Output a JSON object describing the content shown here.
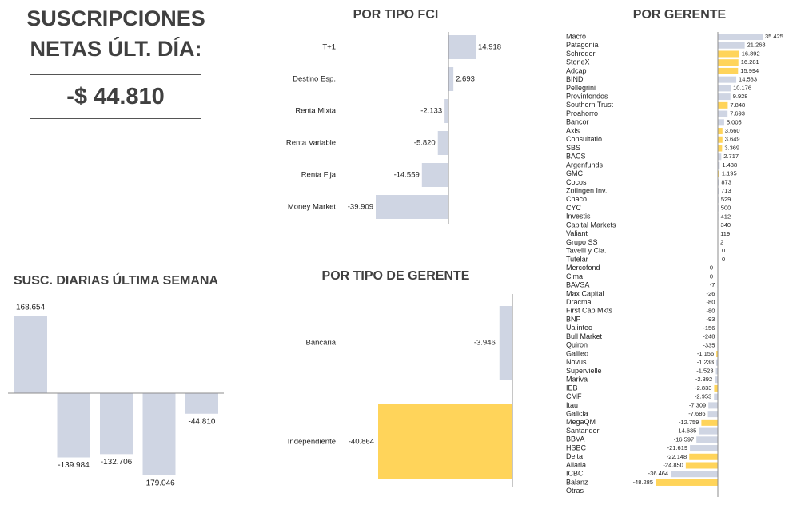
{
  "header": {
    "title_line1": "SUSCRIPCIONES",
    "title_line2": "NETAS ÚLT. DÍA:",
    "total": "-$ 44.810"
  },
  "colors": {
    "gray": "#cfd5e3",
    "yellow": "#ffd45a",
    "axis": "#8c8c8c"
  },
  "chart_data": [
    {
      "id": "fci",
      "type": "bar",
      "orientation": "horizontal",
      "title": "POR TIPO FCI",
      "categories": [
        "T+1",
        "Destino Esp.",
        "Renta Mixta",
        "Renta Variable",
        "Renta Fija",
        "Money Market"
      ],
      "values": [
        14918,
        2693,
        -2133,
        -5820,
        -14559,
        -39909
      ],
      "labels": [
        "14.918",
        "2.693",
        "-2.133",
        "-5.820",
        "-14.559",
        "-39.909"
      ]
    },
    {
      "id": "gerente",
      "type": "bar",
      "orientation": "horizontal",
      "title": "POR GERENTE",
      "categories": [
        "Macro",
        "Patagonia",
        "Schroder",
        "StoneX",
        "Adcap",
        "BIND",
        "Pellegrini",
        "Provinfondos",
        "Southern Trust",
        "Proahorro",
        "Bancor",
        "Axis",
        "Consultatio",
        "SBS",
        "BACS",
        "Argenfunds",
        "GMC",
        "Cocos",
        "Zofingen Inv.",
        "Chaco",
        "CYC",
        "Investis",
        "Capital Markets",
        "Valiant",
        "Grupo SS",
        "Tavelli y Cia.",
        "Tutelar",
        "Mercofond",
        "Cima",
        "BAVSA",
        "Max Capital",
        "Dracma",
        "First Cap Mkts",
        "BNP",
        "Ualintec",
        "Bull Market",
        "Quiron",
        "Galileo",
        "Novus",
        "Supervielle",
        "Mariva",
        "IEB",
        "CMF",
        "Itau",
        "Galicia",
        "MegaQM",
        "Santander",
        "BBVA",
        "HSBC",
        "Delta",
        "Allaria",
        "ICBC",
        "Balanz",
        "Otras"
      ],
      "values": [
        35425,
        21268,
        16892,
        16281,
        15994,
        14583,
        10176,
        9928,
        7848,
        7693,
        5005,
        3660,
        3649,
        3369,
        2717,
        1488,
        1195,
        873,
        713,
        529,
        500,
        412,
        340,
        119,
        2,
        0,
        0,
        0,
        0,
        -7,
        -26,
        -80,
        -80,
        -93,
        -156,
        -248,
        -335,
        -1156,
        -1233,
        -1523,
        -2392,
        -2833,
        -2953,
        -7309,
        -7686,
        -12759,
        -14635,
        -16597,
        -21619,
        -22148,
        -24850,
        -36464,
        -48285,
        null
      ],
      "labels": [
        "35.425",
        "21.268",
        "16.892",
        "16.281",
        "15.994",
        "14.583",
        "10.176",
        "9.928",
        "7.848",
        "7.693",
        "5.005",
        "3.660",
        "3.649",
        "3.369",
        "2.717",
        "1.488",
        "1.195",
        "873",
        "713",
        "529",
        "500",
        "412",
        "340",
        "119",
        "2",
        "0",
        "0",
        "0",
        "0",
        "-7",
        "-26",
        "-80",
        "-80",
        "-93",
        "-156",
        "-248",
        "-335",
        "-1.156",
        "-1.233",
        "-1.523",
        "-2.392",
        "-2.833",
        "-2.953",
        "-7.309",
        "-7.686",
        "-12.759",
        "-14.635",
        "-16.597",
        "-21.619",
        "-22.148",
        "-24.850",
        "-36.464",
        "-48.285",
        ""
      ],
      "independent": [
        false,
        false,
        true,
        true,
        true,
        false,
        false,
        false,
        true,
        false,
        false,
        true,
        true,
        true,
        false,
        false,
        true,
        false,
        false,
        false,
        false,
        false,
        false,
        false,
        false,
        false,
        false,
        false,
        false,
        false,
        false,
        false,
        false,
        false,
        false,
        false,
        false,
        true,
        false,
        false,
        false,
        true,
        false,
        false,
        false,
        true,
        false,
        false,
        false,
        true,
        true,
        false,
        true,
        false
      ]
    },
    {
      "id": "diarias",
      "type": "bar",
      "orientation": "vertical",
      "title": "SUSC. DIARIAS ÚLTIMA SEMANA",
      "values": [
        168654,
        -139984,
        -132706,
        -179046,
        -44810
      ],
      "labels": [
        "168.654",
        "-139.984",
        "-132.706",
        "-179.046",
        "-44.810"
      ]
    },
    {
      "id": "tipoger",
      "type": "bar",
      "orientation": "horizontal",
      "title": "POR TIPO DE GERENTE",
      "categories": [
        "Bancaria",
        "Independiente"
      ],
      "values": [
        -3946,
        -40864
      ],
      "labels": [
        "-3.946",
        "-40.864"
      ]
    }
  ]
}
